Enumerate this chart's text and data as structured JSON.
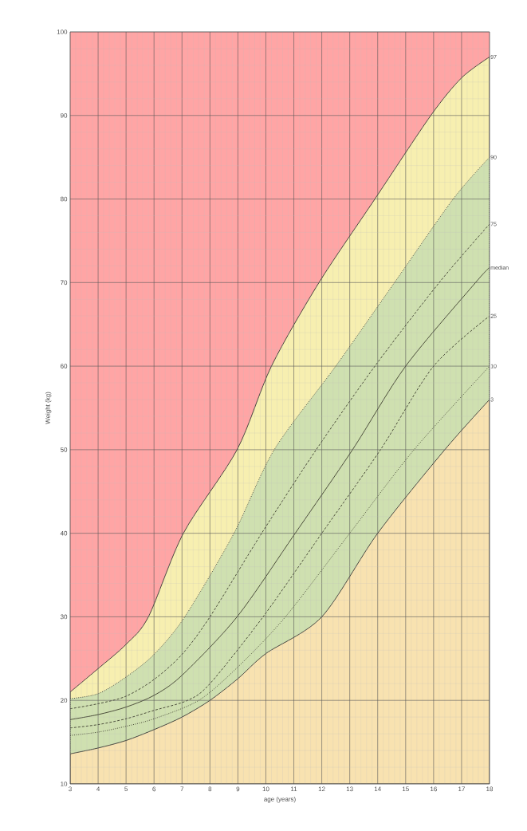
{
  "chart_data": {
    "type": "area",
    "xlabel": "age (years)",
    "ylabel": "Weight (kg)",
    "xlim": [
      3,
      18
    ],
    "ylim": [
      10,
      100
    ],
    "xticks": [
      3,
      4,
      5,
      6,
      7,
      8,
      9,
      10,
      11,
      12,
      13,
      14,
      15,
      16,
      17,
      18
    ],
    "yticks": [
      10,
      20,
      30,
      40,
      50,
      60,
      70,
      80,
      90,
      100
    ],
    "grid": true,
    "series": [
      {
        "name": "97",
        "color": "#f7efb0",
        "line_style": "solid",
        "x": [
          3,
          4,
          5,
          5.8,
          7.05,
          8.97,
          10.2,
          11.9,
          13.9,
          15.9,
          17,
          18
        ],
        "values": [
          21,
          23.8,
          26.7,
          30,
          40,
          50,
          60,
          70,
          80,
          90,
          94.5,
          97
        ]
      },
      {
        "name": "90",
        "color": "#cfe0b0",
        "line_style": "dotted",
        "x": [
          3,
          4,
          5,
          6,
          7.1,
          8.86,
          10.3,
          12.5,
          14.6,
          16.7,
          18
        ],
        "values": [
          20.2,
          20.8,
          22.8,
          25.5,
          30,
          40,
          50,
          60,
          70,
          80,
          85
        ]
      },
      {
        "name": "75",
        "type": "line",
        "color": "#3a3a2a",
        "line_style": "dashed",
        "x": [
          3,
          4,
          5,
          6,
          7,
          8,
          9.85,
          11.8,
          13.9,
          16.2,
          18
        ],
        "values": [
          19,
          19.6,
          20.5,
          22.5,
          25.5,
          30,
          40,
          50,
          60,
          70,
          77
        ]
      },
      {
        "name": "median",
        "type": "line",
        "color": "#3a3a2a",
        "line_style": "solid",
        "x": [
          3,
          4,
          5,
          6,
          7,
          8.97,
          11.05,
          13.1,
          15,
          17.5,
          18
        ],
        "values": [
          17.7,
          18.3,
          19.2,
          20.6,
          23,
          30,
          40,
          50,
          60,
          70,
          71.8
        ]
      },
      {
        "name": "25",
        "type": "line",
        "color": "#3a3a2a",
        "line_style": "dashed",
        "x": [
          3,
          4,
          5,
          6,
          7.2,
          8,
          9.9,
          12,
          14.1,
          16,
          18
        ],
        "values": [
          16.7,
          17.1,
          17.8,
          18.8,
          20,
          22,
          30,
          40,
          50,
          60,
          66
        ]
      },
      {
        "name": "10",
        "type": "line",
        "color": "#3a3a2a",
        "line_style": "dotted",
        "x": [
          3,
          4,
          5,
          6,
          7.6,
          9,
          10.7,
          13,
          15.3,
          18
        ],
        "values": [
          15.8,
          16.2,
          16.9,
          17.8,
          20,
          24,
          30,
          40,
          50,
          60
        ]
      },
      {
        "name": "3",
        "color": "#f8e2b0",
        "line_style": "solid",
        "x": [
          3,
          4,
          5,
          6,
          7,
          8,
          9,
          10,
          12,
          14,
          16.4,
          18
        ],
        "values": [
          13.6,
          14.3,
          15.2,
          16.5,
          18,
          20,
          22.6,
          25.6,
          30,
          40,
          50,
          56
        ]
      }
    ]
  }
}
